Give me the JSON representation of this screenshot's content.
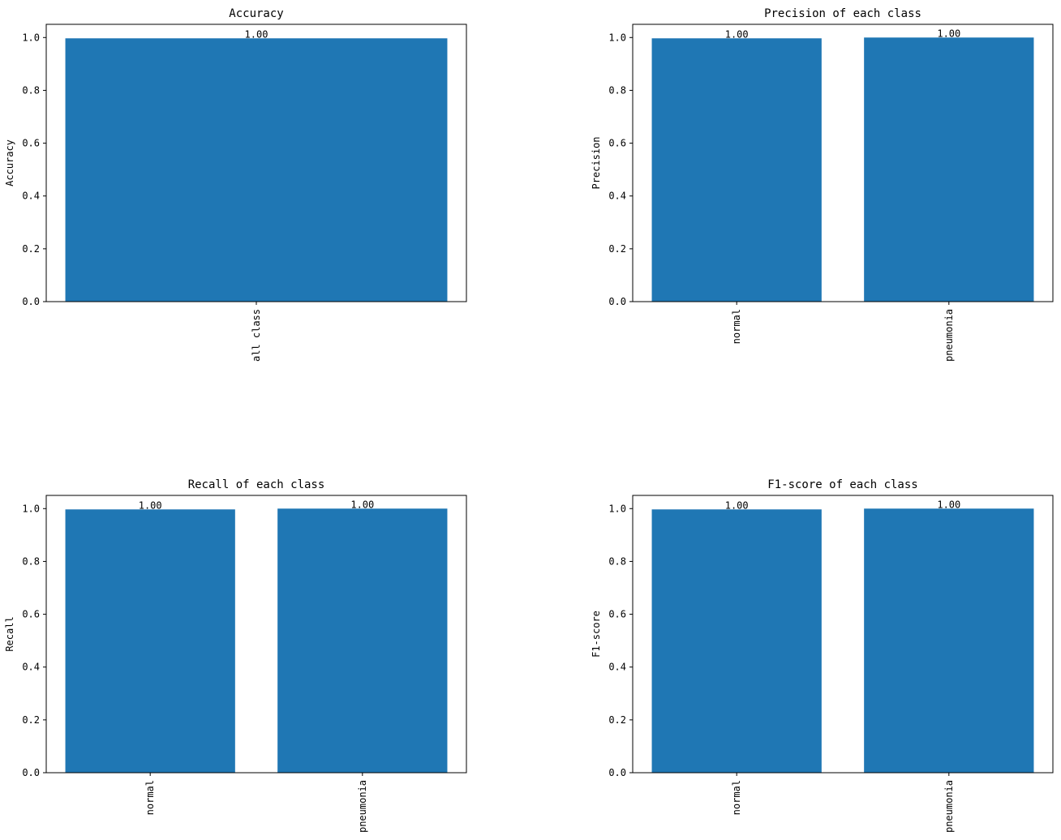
{
  "chart_data": [
    {
      "type": "bar",
      "title": "Accuracy",
      "ylabel": "Accuracy",
      "categories": [
        "all class"
      ],
      "values": [
        0.997
      ],
      "value_labels": [
        "1.00"
      ],
      "color": "#1f77b4",
      "ylim": [
        0,
        1.05
      ],
      "yticks": [
        {
          "value": 0,
          "label": "0.0"
        },
        0.2,
        0.4,
        0.6,
        0.8,
        {
          "value": 1,
          "label": "1.0"
        }
      ]
    },
    {
      "type": "bar",
      "title": "Precision of each class",
      "ylabel": "Precision",
      "categories": [
        "normal",
        "pneumonia"
      ],
      "values": [
        0.997,
        1.0
      ],
      "value_labels": [
        "1.00",
        "1.00"
      ],
      "color": "#1f77b4",
      "ylim": [
        0,
        1.05
      ],
      "yticks": [
        {
          "value": 0,
          "label": "0.0"
        },
        0.2,
        0.4,
        0.6,
        0.8,
        {
          "value": 1,
          "label": "1.0"
        }
      ]
    },
    {
      "type": "bar",
      "title": "Recall of each class",
      "ylabel": "Recall",
      "categories": [
        "normal",
        "pneumonia"
      ],
      "values": [
        0.997,
        1.0
      ],
      "value_labels": [
        "1.00",
        "1.00"
      ],
      "color": "#1f77b4",
      "ylim": [
        0,
        1.05
      ],
      "yticks": [
        {
          "value": 0,
          "label": "0.0"
        },
        0.2,
        0.4,
        0.6,
        0.8,
        {
          "value": 1,
          "label": "1.0"
        }
      ]
    },
    {
      "type": "bar",
      "title": "F1-score of each class",
      "ylabel": "F1-score",
      "categories": [
        "normal",
        "pneumonia"
      ],
      "values": [
        0.997,
        1.0
      ],
      "value_labels": [
        "1.00",
        "1.00"
      ],
      "color": "#1f77b4",
      "ylim": [
        0,
        1.05
      ],
      "yticks": [
        {
          "value": 0,
          "label": "0.0"
        },
        0.2,
        0.4,
        0.6,
        0.8,
        {
          "value": 1,
          "label": "1.0"
        }
      ]
    }
  ]
}
